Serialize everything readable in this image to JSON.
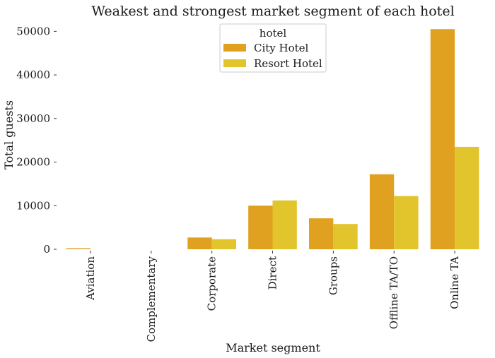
{
  "chart_data": {
    "type": "bar",
    "title": "Weakest and strongest market segment of each hotel",
    "xlabel": "Market segment",
    "ylabel": "Total guests",
    "categories": [
      "Aviation",
      "Complementary",
      "Corporate",
      "Direct",
      "Groups",
      "Offline TA/TO",
      "Online TA"
    ],
    "series": [
      {
        "name": "City Hotel",
        "color": "#e0a020",
        "values": [
          230,
          0,
          2700,
          10000,
          7100,
          17200,
          50500
        ]
      },
      {
        "name": "Resort Hotel",
        "color": "#e2c42d",
        "values": [
          0,
          0,
          2300,
          11200,
          5800,
          12200,
          23500
        ]
      }
    ],
    "ylim": [
      0,
      52000
    ],
    "yticks": [
      0,
      10000,
      20000,
      30000,
      40000,
      50000
    ],
    "legend": {
      "title": "hotel",
      "position": "top-center"
    },
    "grid": false
  }
}
